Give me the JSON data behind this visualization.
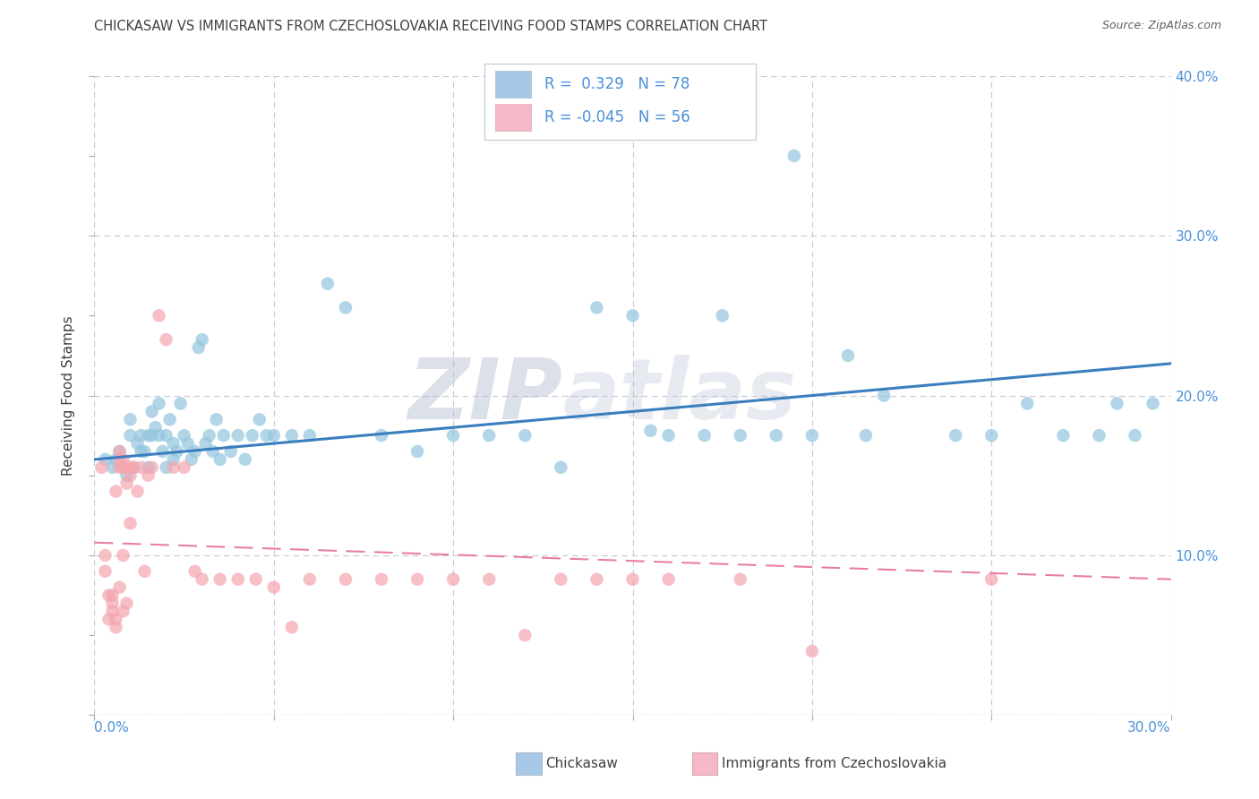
{
  "title": "CHICKASAW VS IMMIGRANTS FROM CZECHOSLOVAKIA RECEIVING FOOD STAMPS CORRELATION CHART",
  "source": "Source: ZipAtlas.com",
  "ylabel": "Receiving Food Stamps",
  "xlim": [
    0.0,
    0.3
  ],
  "ylim": [
    0.0,
    0.4
  ],
  "xticks": [
    0.0,
    0.05,
    0.1,
    0.15,
    0.2,
    0.25,
    0.3
  ],
  "yticks": [
    0.0,
    0.1,
    0.2,
    0.3,
    0.4
  ],
  "blue_color": "#92c5de",
  "pink_color": "#f4a6b0",
  "blue_line_color": "#3a7ebf",
  "pink_line_color": "#e87fa0",
  "watermark_color": "#d0d8e8",
  "legend_blue_color": "#a8c8e8",
  "legend_pink_color": "#f4b8c8",
  "blue_scatter_x": [
    0.003,
    0.005,
    0.006,
    0.007,
    0.008,
    0.009,
    0.01,
    0.01,
    0.011,
    0.012,
    0.013,
    0.013,
    0.014,
    0.015,
    0.015,
    0.016,
    0.016,
    0.017,
    0.018,
    0.018,
    0.019,
    0.02,
    0.02,
    0.021,
    0.022,
    0.022,
    0.023,
    0.024,
    0.025,
    0.026,
    0.027,
    0.028,
    0.029,
    0.03,
    0.031,
    0.032,
    0.033,
    0.034,
    0.035,
    0.036,
    0.038,
    0.04,
    0.042,
    0.044,
    0.046,
    0.048,
    0.05,
    0.055,
    0.06,
    0.065,
    0.07,
    0.08,
    0.09,
    0.1,
    0.11,
    0.12,
    0.13,
    0.14,
    0.15,
    0.155,
    0.16,
    0.17,
    0.175,
    0.18,
    0.19,
    0.195,
    0.2,
    0.21,
    0.215,
    0.22,
    0.24,
    0.25,
    0.26,
    0.27,
    0.28,
    0.285,
    0.29,
    0.295
  ],
  "blue_scatter_y": [
    0.16,
    0.155,
    0.16,
    0.165,
    0.155,
    0.15,
    0.175,
    0.185,
    0.155,
    0.17,
    0.175,
    0.165,
    0.165,
    0.155,
    0.175,
    0.175,
    0.19,
    0.18,
    0.175,
    0.195,
    0.165,
    0.155,
    0.175,
    0.185,
    0.16,
    0.17,
    0.165,
    0.195,
    0.175,
    0.17,
    0.16,
    0.165,
    0.23,
    0.235,
    0.17,
    0.175,
    0.165,
    0.185,
    0.16,
    0.175,
    0.165,
    0.175,
    0.16,
    0.175,
    0.185,
    0.175,
    0.175,
    0.175,
    0.175,
    0.27,
    0.255,
    0.175,
    0.165,
    0.175,
    0.175,
    0.175,
    0.155,
    0.255,
    0.25,
    0.178,
    0.175,
    0.175,
    0.25,
    0.175,
    0.175,
    0.35,
    0.175,
    0.225,
    0.175,
    0.2,
    0.175,
    0.175,
    0.195,
    0.175,
    0.175,
    0.195,
    0.175,
    0.195
  ],
  "pink_scatter_x": [
    0.002,
    0.003,
    0.003,
    0.004,
    0.004,
    0.005,
    0.005,
    0.005,
    0.006,
    0.006,
    0.006,
    0.007,
    0.007,
    0.007,
    0.007,
    0.008,
    0.008,
    0.008,
    0.008,
    0.009,
    0.009,
    0.009,
    0.01,
    0.01,
    0.01,
    0.011,
    0.012,
    0.013,
    0.014,
    0.015,
    0.016,
    0.018,
    0.02,
    0.022,
    0.025,
    0.028,
    0.03,
    0.035,
    0.04,
    0.045,
    0.05,
    0.055,
    0.06,
    0.07,
    0.08,
    0.09,
    0.1,
    0.11,
    0.12,
    0.13,
    0.14,
    0.15,
    0.16,
    0.18,
    0.2,
    0.25
  ],
  "pink_scatter_y": [
    0.155,
    0.1,
    0.09,
    0.075,
    0.06,
    0.065,
    0.07,
    0.075,
    0.14,
    0.06,
    0.055,
    0.165,
    0.16,
    0.155,
    0.08,
    0.16,
    0.155,
    0.1,
    0.065,
    0.145,
    0.155,
    0.07,
    0.15,
    0.155,
    0.12,
    0.155,
    0.14,
    0.155,
    0.09,
    0.15,
    0.155,
    0.25,
    0.235,
    0.155,
    0.155,
    0.09,
    0.085,
    0.085,
    0.085,
    0.085,
    0.08,
    0.055,
    0.085,
    0.085,
    0.085,
    0.085,
    0.085,
    0.085,
    0.05,
    0.085,
    0.085,
    0.085,
    0.085,
    0.085,
    0.04,
    0.085
  ],
  "blue_trend_x": [
    0.0,
    0.3
  ],
  "blue_trend_y": [
    0.16,
    0.22
  ],
  "pink_trend_x": [
    0.0,
    0.3
  ],
  "pink_trend_y": [
    0.108,
    0.085
  ],
  "background_color": "#ffffff",
  "grid_color": "#c8c8d8",
  "title_color": "#404040",
  "tick_label_color": "#4a90d9",
  "ylabel_color": "#404040",
  "source_color": "#606060"
}
